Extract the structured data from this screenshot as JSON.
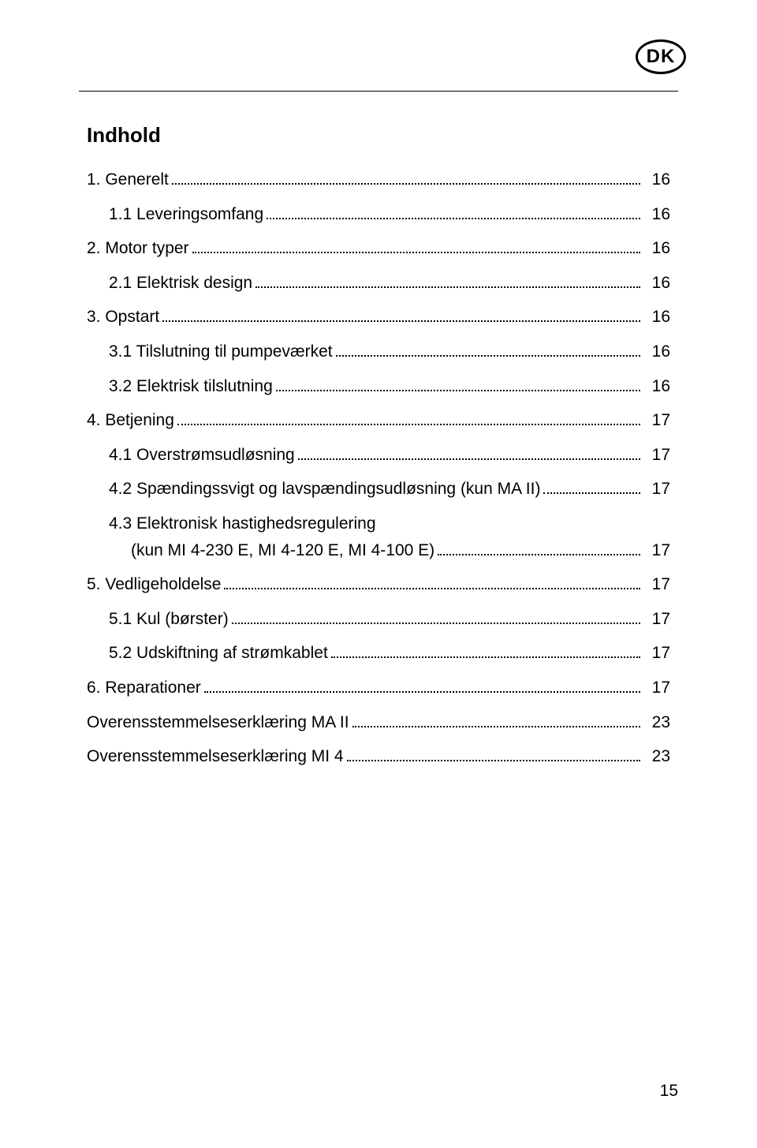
{
  "badge": "DK",
  "title": "Indhold",
  "toc": [
    {
      "indent": 0,
      "label": "1. Generelt",
      "page": "16"
    },
    {
      "indent": 1,
      "label": "1.1 Leveringsomfang",
      "page": "16"
    },
    {
      "indent": 0,
      "label": "2. Motor typer",
      "page": "16"
    },
    {
      "indent": 1,
      "label": "2.1 Elektrisk design",
      "page": "16"
    },
    {
      "indent": 0,
      "label": "3. Opstart",
      "page": "16"
    },
    {
      "indent": 1,
      "label": "3.1 Tilslutning til pumpeværket",
      "page": "16"
    },
    {
      "indent": 1,
      "label": "3.2 Elektrisk tilslutning",
      "page": "16"
    },
    {
      "indent": 0,
      "label": "4. Betjening",
      "page": "17"
    },
    {
      "indent": 1,
      "label": "4.1 Overstrømsudløsning",
      "page": "17"
    },
    {
      "indent": 1,
      "label": "4.2 Spændingssvigt og lavspændingsudløsning (kun MA II)",
      "page": "17"
    },
    {
      "indent": 1,
      "label": "4.3 Elektronisk hastighedsregulering",
      "cont": "(kun MI 4-230 E, MI 4-120 E, MI 4-100 E)",
      "page": "17"
    },
    {
      "indent": 0,
      "label": "5. Vedligeholdelse",
      "page": "17"
    },
    {
      "indent": 1,
      "label": "5.1 Kul (børster)",
      "page": "17"
    },
    {
      "indent": 1,
      "label": "5.2 Udskiftning af strømkablet",
      "page": "17"
    },
    {
      "indent": 0,
      "label": "6. Reparationer",
      "page": "17"
    },
    {
      "indent": 0,
      "label": "Overensstemmelseserklæring MA II",
      "page": "23"
    },
    {
      "indent": 0,
      "label": "Overensstemmelseserklæring MI 4",
      "page": "23"
    }
  ],
  "pageNumber": "15"
}
